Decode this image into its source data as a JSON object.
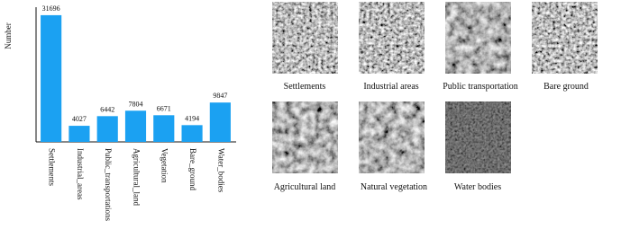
{
  "chart_data": {
    "type": "bar",
    "y_label": "Number",
    "categories": [
      "Settlements",
      "Industrial_areas",
      "Public_transportations",
      "Agricultural_land",
      "Vegetation",
      "Bare_ground",
      "Water_bodies"
    ],
    "values": [
      31696,
      4027,
      6442,
      7804,
      6671,
      4194,
      9847
    ],
    "color": "#1ba1f2",
    "ylim": [
      0,
      33700
    ]
  },
  "images": {
    "captions": [
      "Settlements",
      "Industrial areas",
      "Public transportation",
      "Bare ground",
      "Agricultural land",
      "Natural vegetation",
      "Water bodies"
    ]
  }
}
